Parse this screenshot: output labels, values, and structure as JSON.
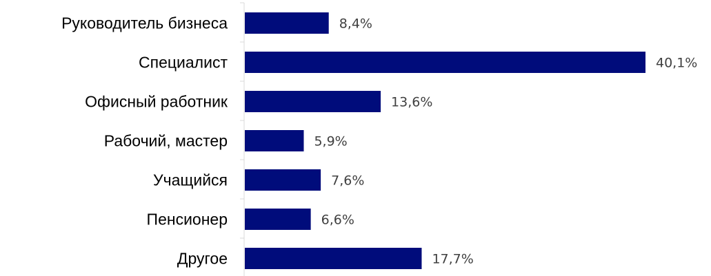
{
  "chart_data": {
    "type": "bar",
    "orientation": "horizontal",
    "categories": [
      "Руководитель бизнеса",
      "Специалист",
      "Офисный работник",
      "Рабочий, мастер",
      "Учащийся",
      "Пенсионер",
      "Другое"
    ],
    "values": [
      8.4,
      40.1,
      13.6,
      5.9,
      7.6,
      6.6,
      17.7
    ],
    "value_labels": [
      "8,4%",
      "40,1%",
      "13,6%",
      "5,9%",
      "7,6%",
      "6,6%",
      "17,7%"
    ],
    "unit": "%",
    "title": "",
    "xlabel": "",
    "ylabel": "",
    "xlim": [
      0,
      40.1
    ],
    "grid": false,
    "legend": "none",
    "bar_color": "#000C7B",
    "axis_color": "#D9D9D9",
    "label_color": "#000000",
    "value_label_color": "#404040"
  }
}
